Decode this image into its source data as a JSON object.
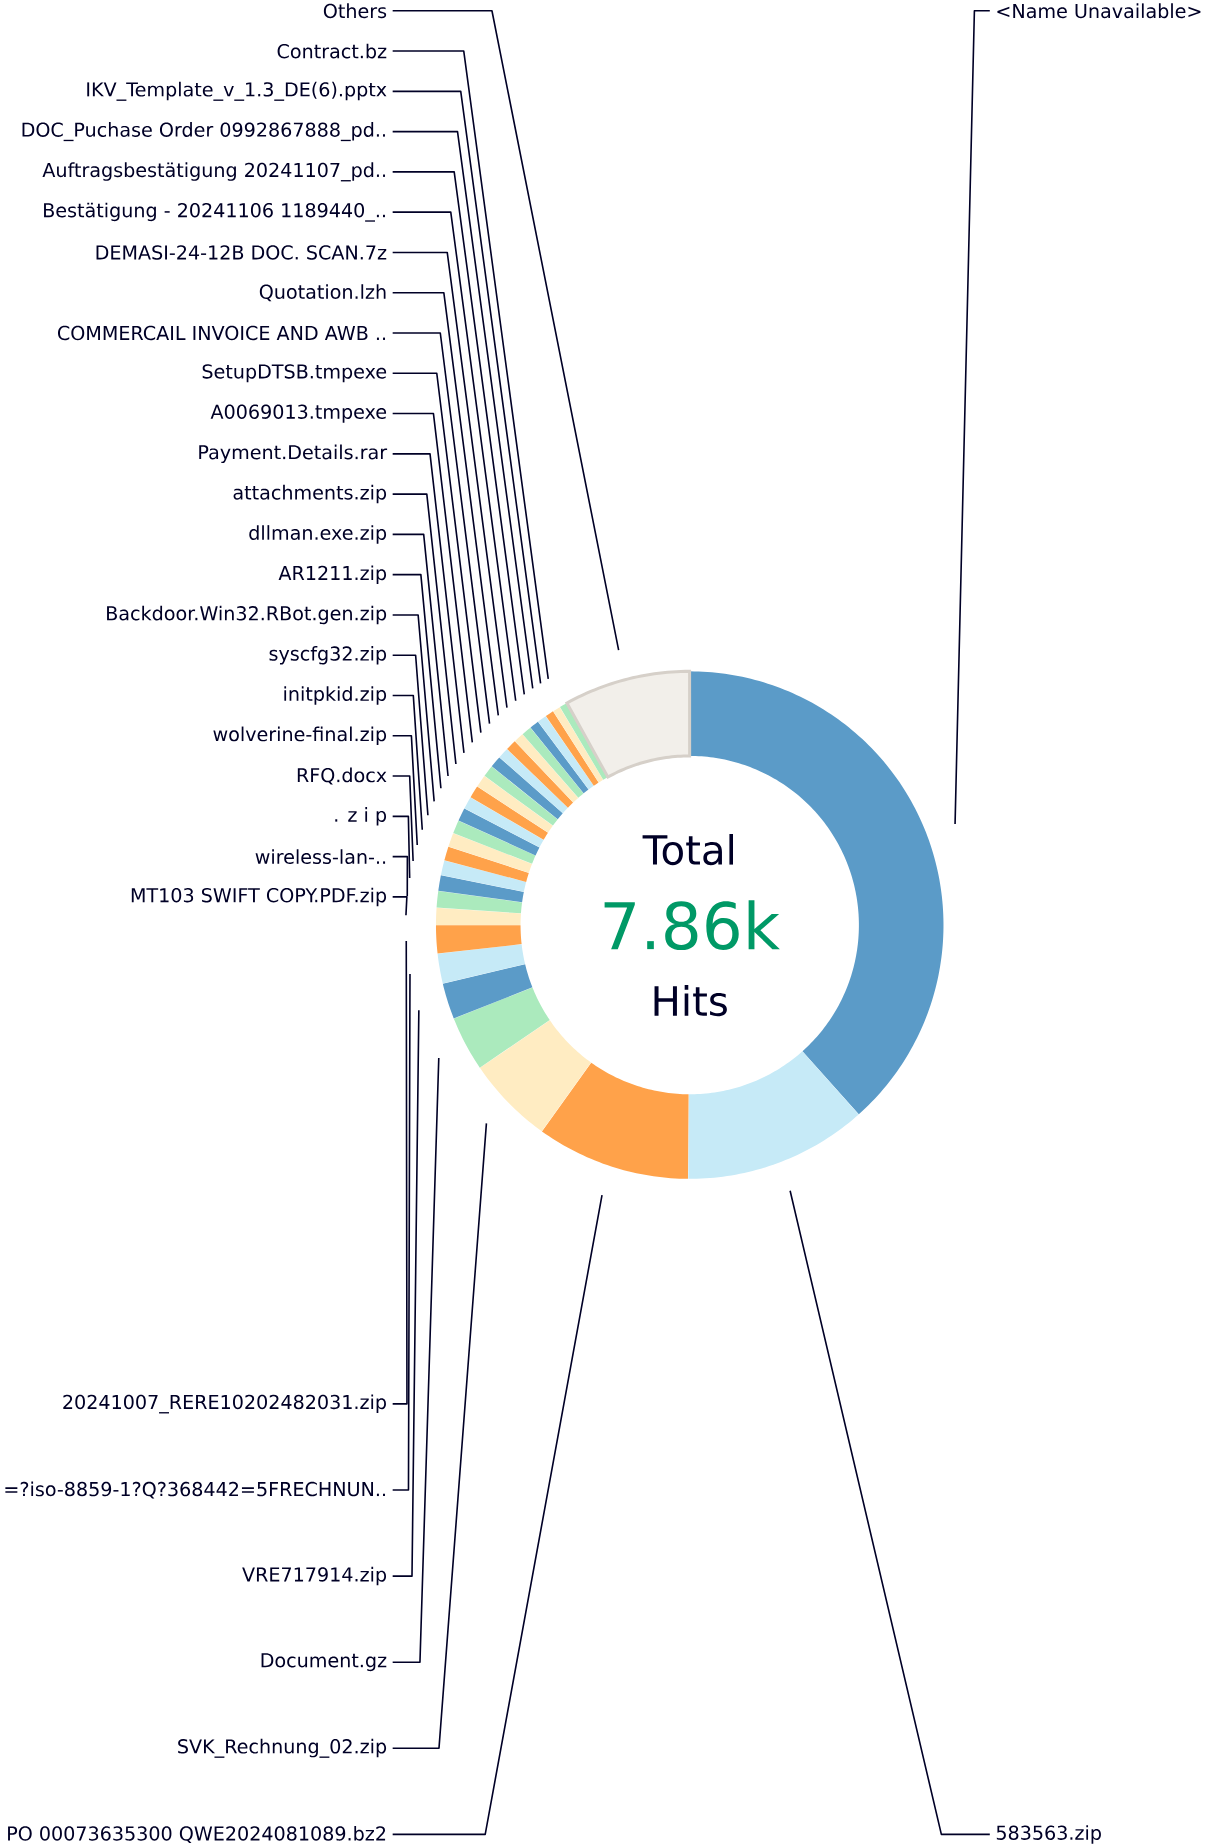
{
  "chart_data": {
    "type": "donut",
    "categories": [
      "<Name Unavailable>",
      "583563.zip",
      "PO 00073635300  QWE2024081089.bz2",
      "SVK_Rechnung_02.zip",
      "Document.gz",
      "VRE717914.zip",
      "=?iso-8859-1?Q?368442=5FRECHNUN..",
      "20241007_RERE10202482031.zip",
      "MT103 SWIFT COPY.PDF.zip",
      "wireless-lan-..",
      ". z i p",
      "RFQ.docx",
      "wolverine-final.zip",
      "initpkid.zip",
      "syscfg32.zip",
      "Backdoor.Win32.RBot.gen.zip",
      "AR1211.zip",
      "dllman.exe.zip",
      "attachments.zip",
      "Payment.Details.rar",
      "A0069013.tmpexe",
      "SetupDTSB.tmpexe",
      "COMMERCAIL INVOICE AND AWB ..",
      "Quotation.lzh",
      "DEMASI-24-12B DOC. SCAN.7z",
      "Bestätigung - 20241106 1189440_..",
      "Auftragsbestätigung 20241107_pd..",
      "DOC_Puchase Order 0992867888_pd..",
      "IKV_Template_v_1.3_DE(6).pptx",
      "Contract.bz",
      "Others"
    ],
    "values": [
      38.4,
      11.7,
      9.8,
      5.6,
      3.5,
      2.3,
      1.9,
      1.8,
      1.1,
      1.05,
      1.0,
      0.95,
      0.9,
      0.9,
      0.85,
      0.85,
      0.8,
      0.8,
      0.8,
      0.75,
      0.75,
      0.7,
      0.7,
      0.65,
      0.65,
      0.6,
      0.6,
      0.55,
      0.5,
      0.5,
      8.05
    ],
    "colors": [
      "#5b9bc8",
      "#c6eaf7",
      "#ffa24a",
      "#ffecc2",
      "#abeabd",
      "#5b9bc8",
      "#c6eaf7",
      "#ffa24a",
      "#ffecc2",
      "#abeabd",
      "#5b9bc8",
      "#c6eaf7",
      "#ffa24a",
      "#ffecc2",
      "#abeabd",
      "#5b9bc8",
      "#c6eaf7",
      "#ffa24a",
      "#ffecc2",
      "#abeabd",
      "#5b9bc8",
      "#c6eaf7",
      "#ffa24a",
      "#ffecc2",
      "#abeabd",
      "#5b9bc8",
      "#c6eaf7",
      "#ffa24a",
      "#ffecc2",
      "#abeabd",
      "#f2efea"
    ],
    "annotations": [
      "Total",
      "7.86k",
      "Hits"
    ]
  }
}
